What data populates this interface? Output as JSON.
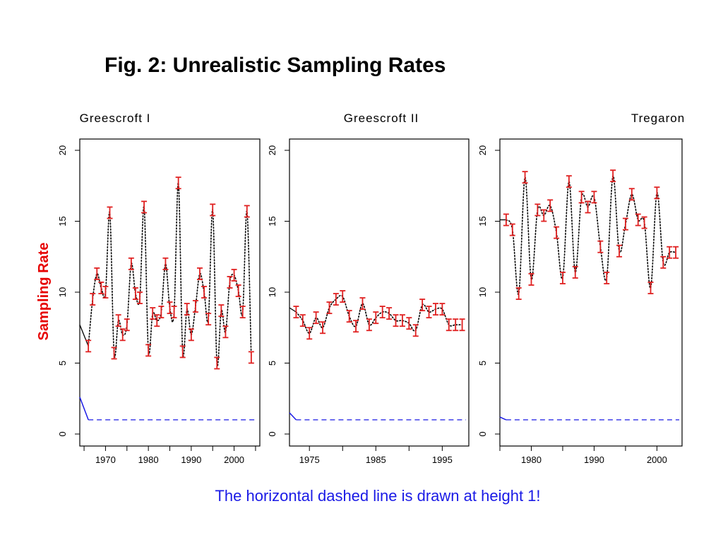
{
  "title": "Fig. 2: Unrealistic Sampling Rates",
  "caption": "The horizontal dashed line is drawn at height 1!",
  "ylabel": "Sampling Rate",
  "colors": {
    "error_bar": "#e02020",
    "dashed_line": "#1a1ae6",
    "caption": "#1a1ae6",
    "ylabel": "#e60000"
  },
  "chart_data": [
    {
      "type": "line",
      "title": "Greescroft I",
      "ylabel": "Sampling Rate",
      "xlim": [
        1964,
        2006
      ],
      "ylim": [
        0,
        20
      ],
      "xticks": [
        1970,
        1980,
        1990,
        2000
      ],
      "yticks": [
        0,
        5,
        10,
        15,
        20
      ],
      "reference_line": 1,
      "extrapolation_start": [
        {
          "x": 1964,
          "y": 7.7
        },
        {
          "x": 1964,
          "y": 2.6
        }
      ],
      "x": [
        1966,
        1967,
        1968,
        1969,
        1970,
        1971,
        1972,
        1973,
        1974,
        1975,
        1976,
        1977,
        1978,
        1979,
        1980,
        1981,
        1982,
        1983,
        1984,
        1985,
        1986,
        1987,
        1988,
        1989,
        1990,
        1991,
        1992,
        1993,
        1994,
        1995,
        1996,
        1997,
        1998,
        1999,
        2000,
        2001,
        2002,
        2003,
        2004
      ],
      "y": [
        6.2,
        9.5,
        11.3,
        10.3,
        10.0,
        15.6,
        5.7,
        8.0,
        7.0,
        7.7,
        12.0,
        9.9,
        9.6,
        16.0,
        5.9,
        8.5,
        8.0,
        8.6,
        12.0,
        8.9,
        8.6,
        17.7,
        5.8,
        8.8,
        7.0,
        9.0,
        11.3,
        10.0,
        8.1,
        15.8,
        5.0,
        8.7,
        7.2,
        10.7,
        11.2,
        10.1,
        8.6,
        15.7,
        5.4
      ]
    },
    {
      "type": "line",
      "title": "Greescroft II",
      "xlim": [
        1972,
        1999
      ],
      "ylim": [
        0,
        20
      ],
      "xticks": [
        1975,
        1985,
        1995
      ],
      "yticks": [
        0,
        5,
        10,
        15,
        20
      ],
      "reference_line": 1,
      "extrapolation_start": [
        {
          "x": 1972,
          "y": 8.9
        },
        {
          "x": 1972,
          "y": 1.5
        }
      ],
      "x": [
        1973,
        1974,
        1975,
        1976,
        1977,
        1978,
        1979,
        1980,
        1981,
        1982,
        1983,
        1984,
        1985,
        1986,
        1987,
        1988,
        1989,
        1990,
        1991,
        1992,
        1993,
        1994,
        1995,
        1996,
        1997,
        1998
      ],
      "y": [
        8.6,
        8.0,
        7.1,
        8.2,
        7.5,
        8.9,
        9.5,
        9.7,
        8.3,
        7.6,
        9.2,
        7.7,
        8.2,
        8.6,
        8.5,
        8.0,
        8.0,
        7.8,
        7.3,
        9.1,
        8.6,
        8.8,
        8.8,
        7.7,
        7.7,
        7.7
      ]
    },
    {
      "type": "line",
      "title": "Tregaron",
      "xlim": [
        1975,
        2004
      ],
      "ylim": [
        0,
        20
      ],
      "xticks": [
        1980,
        1990,
        2000
      ],
      "yticks": [
        0,
        5,
        10,
        15,
        20
      ],
      "reference_line": 1,
      "extrapolation_start": [
        {
          "x": 1975,
          "y": 15.1
        },
        {
          "x": 1975,
          "y": 1.2
        }
      ],
      "x": [
        1976,
        1977,
        1978,
        1979,
        1980,
        1981,
        1982,
        1983,
        1984,
        1985,
        1986,
        1987,
        1988,
        1989,
        1990,
        1991,
        1992,
        1993,
        1994,
        1995,
        1996,
        1997,
        1998,
        1999,
        2000,
        2001,
        2002,
        2003
      ],
      "y": [
        15.1,
        14.4,
        9.9,
        18.1,
        10.9,
        15.8,
        15.4,
        16.1,
        14.2,
        11.0,
        17.8,
        11.4,
        16.7,
        16.0,
        16.7,
        13.2,
        11.0,
        18.2,
        12.9,
        14.8,
        16.9,
        15.1,
        14.9,
        10.3,
        17.0,
        12.1,
        12.8,
        12.8
      ]
    }
  ]
}
